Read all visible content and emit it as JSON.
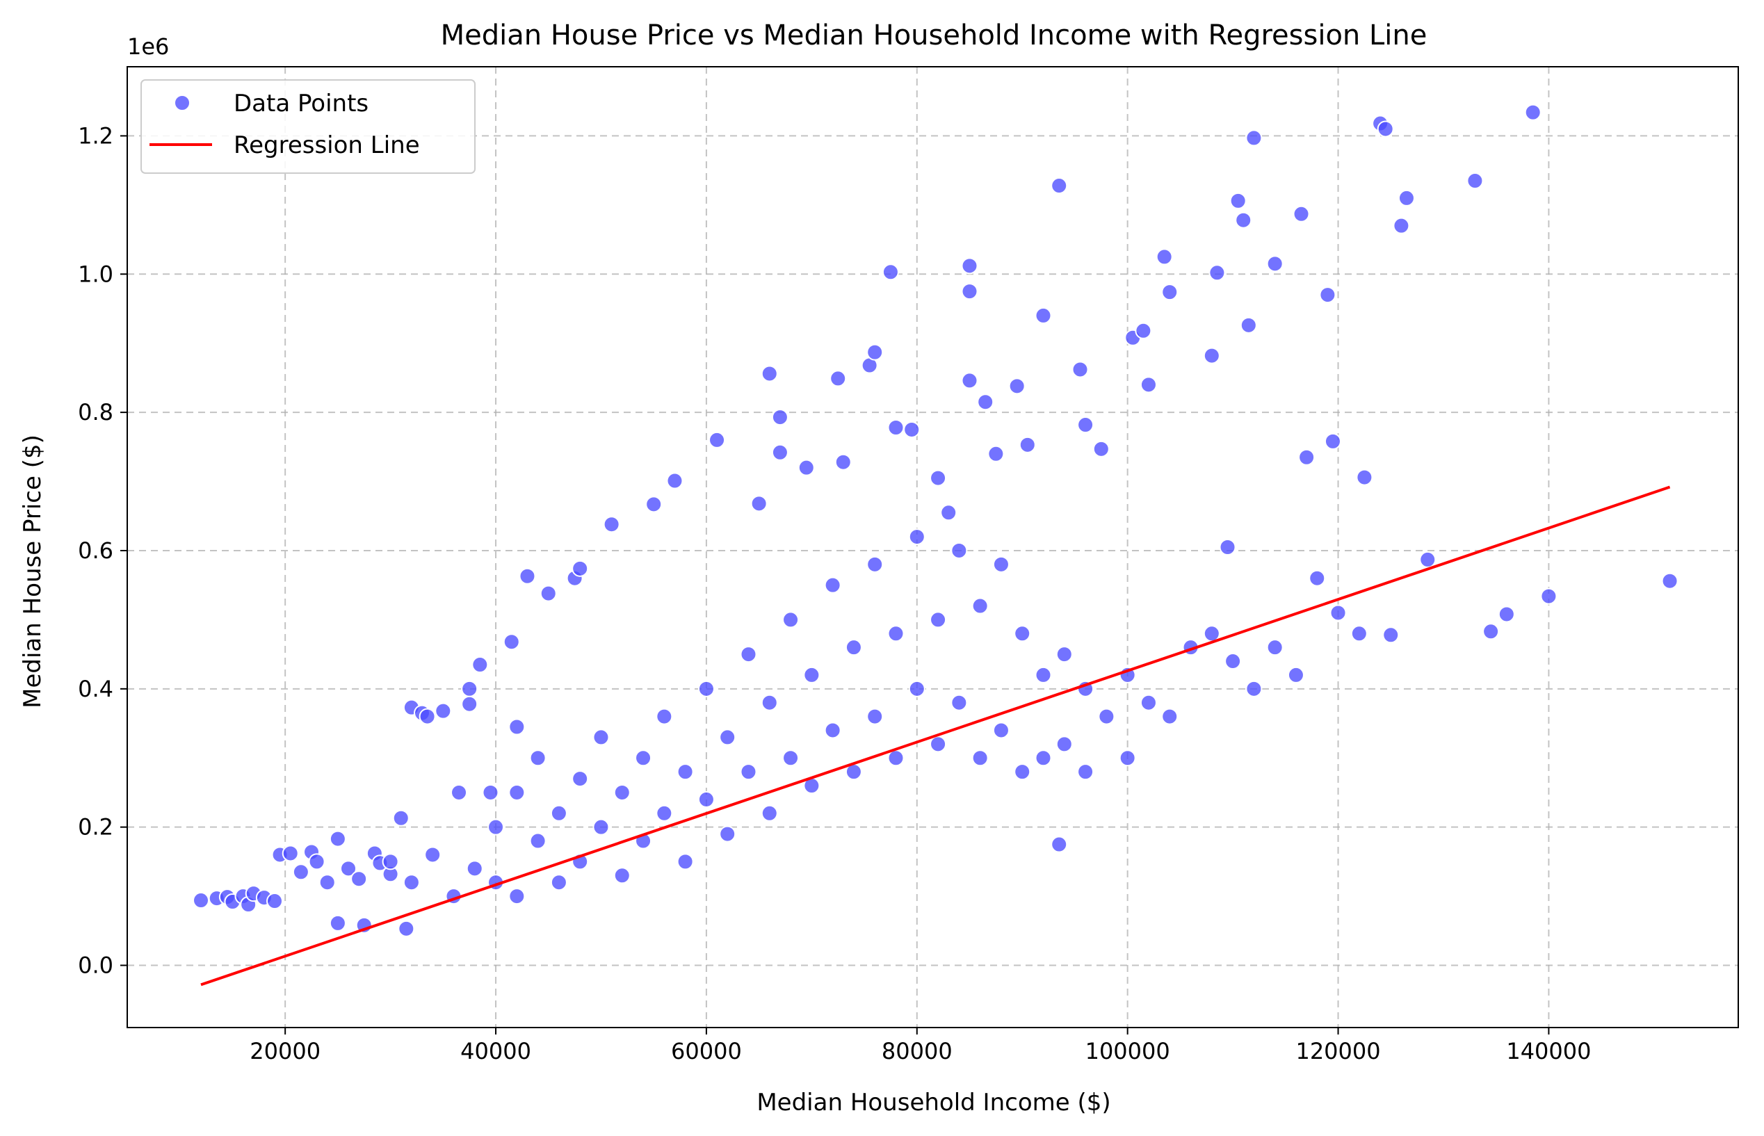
{
  "chart_data": {
    "type": "scatter",
    "title": "Median House Price vs Median Household Income with Regression Line",
    "xlabel": "Median Household Income ($)",
    "ylabel": "Median House Price ($)",
    "y_offset_label": "1e6",
    "xlim": [
      5000,
      158000
    ],
    "ylim": [
      -0.09,
      1.3
    ],
    "x_ticks": [
      20000,
      40000,
      60000,
      80000,
      100000,
      120000,
      140000
    ],
    "x_tick_labels": [
      "20000",
      "40000",
      "60000",
      "80000",
      "100000",
      "120000",
      "140000"
    ],
    "y_ticks": [
      0.0,
      0.2,
      0.4,
      0.6,
      0.8,
      1.0,
      1.2
    ],
    "y_tick_labels": [
      "0.0",
      "0.2",
      "0.4",
      "0.6",
      "0.8",
      "1.0",
      "1.2"
    ],
    "grid": true,
    "legend_position": "top-left",
    "series": [
      {
        "name": "Data Points",
        "kind": "scatter",
        "color": "#4b4bff",
        "points": [
          [
            12000,
            0.094
          ],
          [
            13500,
            0.097
          ],
          [
            14500,
            0.099
          ],
          [
            15000,
            0.092
          ],
          [
            16000,
            0.1
          ],
          [
            16500,
            0.088
          ],
          [
            17000,
            0.104
          ],
          [
            18000,
            0.098
          ],
          [
            19000,
            0.093
          ],
          [
            19500,
            0.16
          ],
          [
            20500,
            0.162
          ],
          [
            21500,
            0.135
          ],
          [
            22500,
            0.164
          ],
          [
            23000,
            0.15
          ],
          [
            24000,
            0.12
          ],
          [
            25000,
            0.183
          ],
          [
            25000,
            0.061
          ],
          [
            26000,
            0.14
          ],
          [
            27000,
            0.125
          ],
          [
            27500,
            0.058
          ],
          [
            28500,
            0.162
          ],
          [
            29000,
            0.148
          ],
          [
            30000,
            0.132
          ],
          [
            31000,
            0.213
          ],
          [
            31500,
            0.053
          ],
          [
            32000,
            0.373
          ],
          [
            33000,
            0.365
          ],
          [
            33500,
            0.36
          ],
          [
            35000,
            0.368
          ],
          [
            36500,
            0.25
          ],
          [
            37500,
            0.4
          ],
          [
            37500,
            0.378
          ],
          [
            38500,
            0.435
          ],
          [
            39500,
            0.25
          ],
          [
            41500,
            0.468
          ],
          [
            42000,
            0.345
          ],
          [
            43000,
            0.563
          ],
          [
            45000,
            0.538
          ],
          [
            47500,
            0.56
          ],
          [
            48000,
            0.574
          ],
          [
            51000,
            0.638
          ],
          [
            55000,
            0.667
          ],
          [
            57000,
            0.701
          ],
          [
            61000,
            0.76
          ],
          [
            65000,
            0.668
          ],
          [
            66000,
            0.856
          ],
          [
            67000,
            0.793
          ],
          [
            67000,
            0.742
          ],
          [
            69500,
            0.72
          ],
          [
            72500,
            0.849
          ],
          [
            73000,
            0.728
          ],
          [
            75500,
            0.868
          ],
          [
            76000,
            0.887
          ],
          [
            77500,
            1.003
          ],
          [
            78000,
            0.778
          ],
          [
            79500,
            0.775
          ],
          [
            82000,
            0.705
          ],
          [
            83000,
            0.655
          ],
          [
            85000,
            1.012
          ],
          [
            85000,
            0.975
          ],
          [
            85000,
            0.846
          ],
          [
            86500,
            0.815
          ],
          [
            87500,
            0.74
          ],
          [
            89500,
            0.838
          ],
          [
            90500,
            0.753
          ],
          [
            92000,
            0.94
          ],
          [
            93500,
            1.128
          ],
          [
            95500,
            0.862
          ],
          [
            96000,
            0.782
          ],
          [
            97500,
            0.747
          ],
          [
            100500,
            0.908
          ],
          [
            101500,
            0.918
          ],
          [
            102000,
            0.84
          ],
          [
            103500,
            1.025
          ],
          [
            104000,
            0.974
          ],
          [
            108500,
            1.002
          ],
          [
            108000,
            0.882
          ],
          [
            109500,
            0.605
          ],
          [
            110500,
            1.106
          ],
          [
            111000,
            1.078
          ],
          [
            111500,
            0.926
          ],
          [
            112000,
            1.197
          ],
          [
            114000,
            1.015
          ],
          [
            116500,
            1.087
          ],
          [
            117000,
            0.735
          ],
          [
            119000,
            0.97
          ],
          [
            119500,
            0.758
          ],
          [
            122500,
            0.706
          ],
          [
            124000,
            1.218
          ],
          [
            124500,
            1.21
          ],
          [
            126500,
            1.11
          ],
          [
            126000,
            1.07
          ],
          [
            128500,
            0.587
          ],
          [
            133000,
            1.135
          ],
          [
            134500,
            0.483
          ],
          [
            136000,
            0.508
          ],
          [
            138500,
            1.234
          ],
          [
            140000,
            0.534
          ],
          [
            151500,
            0.556
          ],
          [
            93500,
            0.175
          ],
          [
            30000,
            0.15
          ],
          [
            32000,
            0.12
          ],
          [
            34000,
            0.16
          ],
          [
            36000,
            0.1
          ],
          [
            38000,
            0.14
          ],
          [
            40000,
            0.2
          ],
          [
            40000,
            0.12
          ],
          [
            42000,
            0.25
          ],
          [
            42000,
            0.1
          ],
          [
            44000,
            0.18
          ],
          [
            44000,
            0.3
          ],
          [
            46000,
            0.22
          ],
          [
            46000,
            0.12
          ],
          [
            48000,
            0.27
          ],
          [
            48000,
            0.15
          ],
          [
            50000,
            0.2
          ],
          [
            50000,
            0.33
          ],
          [
            52000,
            0.25
          ],
          [
            52000,
            0.13
          ],
          [
            54000,
            0.3
          ],
          [
            54000,
            0.18
          ],
          [
            56000,
            0.36
          ],
          [
            56000,
            0.22
          ],
          [
            58000,
            0.28
          ],
          [
            58000,
            0.15
          ],
          [
            60000,
            0.4
          ],
          [
            60000,
            0.24
          ],
          [
            62000,
            0.33
          ],
          [
            62000,
            0.19
          ],
          [
            64000,
            0.45
          ],
          [
            64000,
            0.28
          ],
          [
            66000,
            0.38
          ],
          [
            66000,
            0.22
          ],
          [
            68000,
            0.5
          ],
          [
            68000,
            0.3
          ],
          [
            70000,
            0.42
          ],
          [
            70000,
            0.26
          ],
          [
            72000,
            0.55
          ],
          [
            72000,
            0.34
          ],
          [
            74000,
            0.46
          ],
          [
            74000,
            0.28
          ],
          [
            76000,
            0.58
          ],
          [
            76000,
            0.36
          ],
          [
            78000,
            0.48
          ],
          [
            78000,
            0.3
          ],
          [
            80000,
            0.62
          ],
          [
            80000,
            0.4
          ],
          [
            82000,
            0.5
          ],
          [
            82000,
            0.32
          ],
          [
            84000,
            0.6
          ],
          [
            84000,
            0.38
          ],
          [
            86000,
            0.52
          ],
          [
            86000,
            0.3
          ],
          [
            88000,
            0.58
          ],
          [
            88000,
            0.34
          ],
          [
            90000,
            0.48
          ],
          [
            90000,
            0.28
          ],
          [
            92000,
            0.42
          ],
          [
            92000,
            0.3
          ],
          [
            94000,
            0.45
          ],
          [
            94000,
            0.32
          ],
          [
            96000,
            0.4
          ],
          [
            96000,
            0.28
          ],
          [
            98000,
            0.36
          ],
          [
            100000,
            0.42
          ],
          [
            100000,
            0.3
          ],
          [
            102000,
            0.38
          ],
          [
            104000,
            0.36
          ],
          [
            106000,
            0.46
          ],
          [
            108000,
            0.48
          ],
          [
            110000,
            0.44
          ],
          [
            112000,
            0.4
          ],
          [
            114000,
            0.46
          ],
          [
            116000,
            0.42
          ],
          [
            118000,
            0.56
          ],
          [
            120000,
            0.51
          ],
          [
            122000,
            0.48
          ],
          [
            125000,
            0.478
          ]
        ]
      },
      {
        "name": "Regression Line",
        "kind": "line",
        "color": "#ff0000",
        "points": [
          [
            12000,
            -0.028
          ],
          [
            151500,
            0.692
          ]
        ]
      }
    ]
  }
}
